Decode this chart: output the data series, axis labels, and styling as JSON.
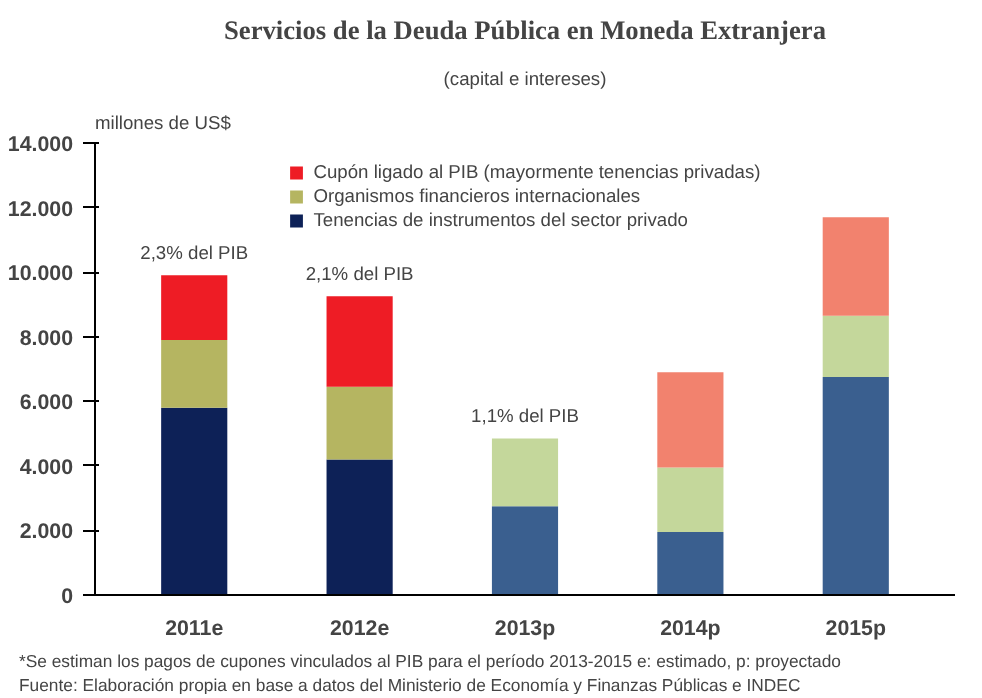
{
  "chart_data": {
    "type": "bar",
    "title": "Servicios de la Deuda Pública en Moneda Extranjera",
    "subtitle": "(capital e intereses)",
    "ylabel": "millones de US$",
    "categories": [
      "2011e",
      "2012e",
      "2013p",
      "2014p",
      "2015p"
    ],
    "stacked": true,
    "series": [
      {
        "name": "Tenencias de instrumentos del sector privado",
        "color": "#0d2157",
        "colors": [
          "#0d2157",
          "#0d2157",
          "#3a5f8f",
          "#3a5f8f",
          "#3a5f8f"
        ],
        "values": [
          5800,
          4200,
          2750,
          1950,
          6750
        ]
      },
      {
        "name": "Organismos financieros internacionales",
        "color": "#b5b561",
        "colors": [
          "#b5b561",
          "#b5b561",
          "#c4d79b",
          "#c4d79b",
          "#c4d79b"
        ],
        "values": [
          2100,
          2250,
          2100,
          2000,
          1900
        ]
      },
      {
        "name": "Cupón ligado al PIB (mayormente tenencias privadas)",
        "color": "#ee1c25",
        "colors": [
          "#ee1c25",
          "#ee1c25",
          "#f2826e",
          "#f2826e",
          "#f2826e"
        ],
        "values": [
          2000,
          2800,
          0,
          2950,
          3050
        ]
      }
    ],
    "ylim": [
      0,
      14000
    ],
    "yticks": [
      {
        "value": 0,
        "label": "0"
      },
      {
        "value": 2000,
        "label": "2.000"
      },
      {
        "value": 4000,
        "label": "4.000"
      },
      {
        "value": 6000,
        "label": "6.000"
      },
      {
        "value": 8000,
        "label": "8.000"
      },
      {
        "value": 10000,
        "label": "10.000"
      },
      {
        "value": 12000,
        "label": "12.000"
      },
      {
        "value": 14000,
        "label": "14.000"
      }
    ],
    "grid": false,
    "legend": "top",
    "annotations": [
      {
        "text": "2,3% del PIB",
        "x": "2011e",
        "y": 9900
      },
      {
        "text": "2,1% del PIB",
        "x": "2012e",
        "y": 9250
      },
      {
        "text": "1,1% del PIB",
        "x": "2013p",
        "y": 4850
      },
      "*Se estiman los pagos de cupones vinculados al PIB para el período 2013-2015          e: estimado,  p: proyectado",
      "Fuente: Elaboración propia en base a datos del Ministerio de Economía y Finanzas Públicas e INDEC"
    ]
  }
}
